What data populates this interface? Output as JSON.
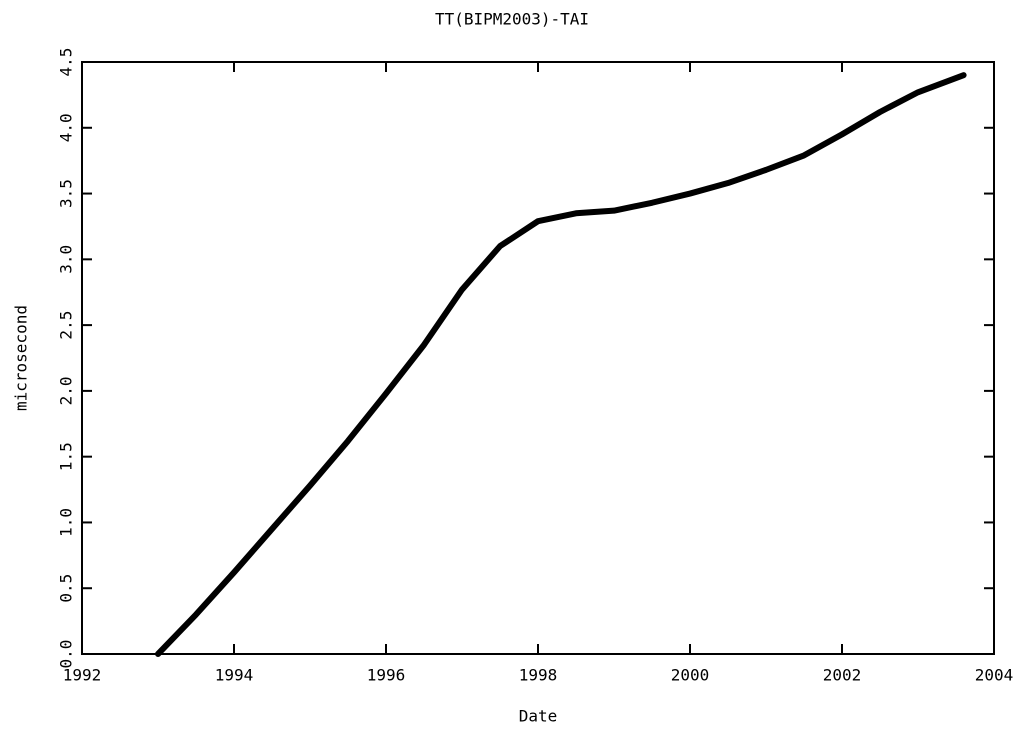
{
  "chart_data": {
    "type": "line",
    "title": "TT(BIPM2003)-TAI",
    "x_label": "Date",
    "y_label": "microsecond",
    "x": [
      1993.0,
      1993.5,
      1994.0,
      1994.5,
      1995.0,
      1995.5,
      1996.0,
      1996.5,
      1997.0,
      1997.5,
      1998.0,
      1998.5,
      1999.0,
      1999.5,
      2000.0,
      2000.5,
      2001.0,
      2001.5,
      2002.0,
      2002.5,
      2003.0,
      2003.6
    ],
    "series": [
      {
        "color": "#000000",
        "values": [
          0.0,
          0.3,
          0.62,
          0.95,
          1.28,
          1.62,
          1.98,
          2.35,
          2.77,
          3.1,
          3.29,
          3.35,
          3.37,
          3.43,
          3.5,
          3.58,
          3.68,
          3.79,
          3.95,
          4.12,
          4.27,
          4.4
        ]
      }
    ],
    "xlim": [
      1992,
      2004
    ],
    "xticks": [
      1992,
      1994,
      1996,
      1998,
      2000,
      2002,
      2004
    ],
    "ylim": [
      0,
      4.5
    ],
    "yticks": [
      {
        "value": 0,
        "label": "0.0"
      },
      0.5,
      {
        "value": 1,
        "label": "1.0"
      },
      1.5,
      {
        "value": 2,
        "label": "2.0"
      },
      2.5,
      {
        "value": 3,
        "label": "3.0"
      },
      3.5,
      {
        "value": 4,
        "label": "4.0"
      },
      4.5
    ],
    "grid": false
  }
}
